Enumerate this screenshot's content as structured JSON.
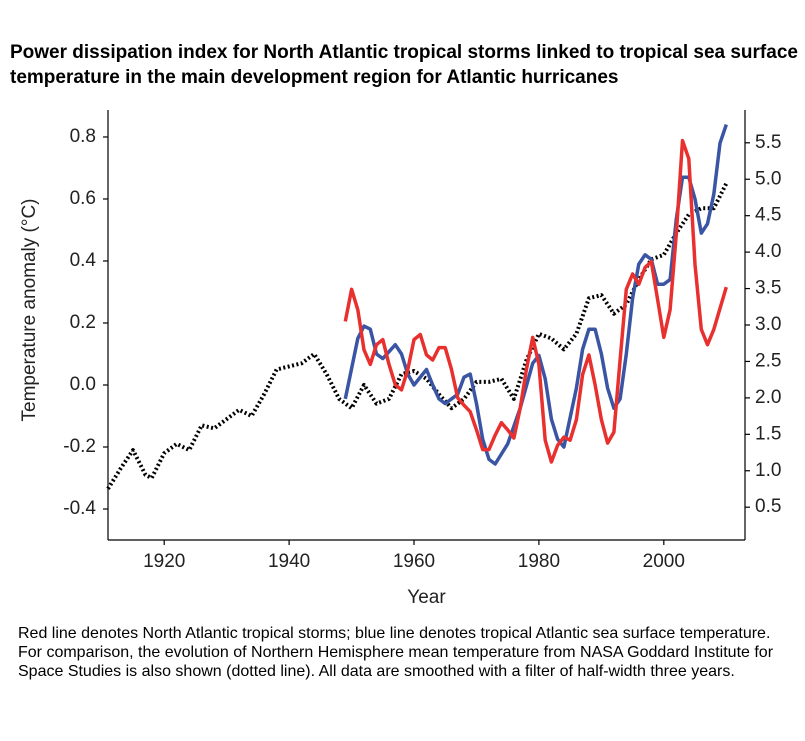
{
  "chart_data": {
    "type": "line",
    "title": "Power dissipation index for North Atlantic tropical storms linked to tropical sea surface temperature in the main development region for Atlantic hurricanes",
    "caption": "Red line denotes North Atlantic tropical storms; blue line denotes tropical Atlantic sea surface temperature. For comparison, the evolution of Northern Hemisphere mean temperature from NASA Goddard Institute for Space Studies is also shown (dotted line). All data are smoothed with a filter of half-width three years.",
    "x_label": "Year",
    "y_label": "Temperature anomaly (°C)",
    "xlim": [
      1911,
      2013
    ],
    "xticks": [
      1920,
      1940,
      1960,
      1980,
      2000
    ],
    "ylim": [
      -0.5,
      0.887
    ],
    "yticks": [
      -0.4,
      -0.2,
      {
        "value": 0,
        "label": "0.0"
      },
      0.2,
      0.4,
      0.6,
      0.8
    ],
    "y2lim": [
      0.05,
      5.95
    ],
    "y2ticks": [
      0.5,
      {
        "value": 1,
        "label": "1.0"
      },
      1.5,
      {
        "value": 2,
        "label": "2.0"
      },
      2.5,
      {
        "value": 3,
        "label": "3.0"
      },
      3.5,
      {
        "value": 4,
        "label": "4.0"
      },
      4.5,
      {
        "value": 5,
        "label": "5.0"
      },
      5.5
    ],
    "series": [
      {
        "color": "#000000",
        "style": "dotted",
        "x": [
          1911,
          1913,
          1915,
          1917,
          1918,
          1920,
          1922,
          1924,
          1926,
          1928,
          1930,
          1932,
          1934,
          1936,
          1938,
          1940,
          1942,
          1944,
          1946,
          1948,
          1950,
          1952,
          1954,
          1956,
          1958,
          1960,
          1962,
          1964,
          1966,
          1968,
          1970,
          1972,
          1974,
          1976,
          1978,
          1980,
          1982,
          1984,
          1986,
          1988,
          1990,
          1992,
          1994,
          1996,
          1998,
          2000,
          2002,
          2004,
          2006,
          2008,
          2010
        ],
        "values": [
          -0.335,
          -0.27,
          -0.21,
          -0.29,
          -0.3,
          -0.22,
          -0.19,
          -0.21,
          -0.13,
          -0.14,
          -0.11,
          -0.08,
          -0.1,
          -0.03,
          0.05,
          0.06,
          0.07,
          0.1,
          0.035,
          -0.045,
          -0.075,
          0.0,
          -0.06,
          -0.045,
          0.035,
          0.045,
          0.02,
          -0.03,
          -0.075,
          -0.045,
          0.01,
          0.01,
          0.02,
          -0.045,
          0.08,
          0.165,
          0.15,
          0.115,
          0.165,
          0.28,
          0.29,
          0.23,
          0.26,
          0.34,
          0.405,
          0.42,
          0.49,
          0.55,
          0.57,
          0.57,
          0.65
        ]
      },
      {
        "color": "#3a55a4",
        "style": "solid",
        "x": [
          1949,
          1951,
          1952,
          1953,
          1954,
          1955,
          1957,
          1958,
          1959,
          1960,
          1962,
          1963,
          1964,
          1965,
          1967,
          1968,
          1969,
          1970,
          1971,
          1972,
          1973,
          1975,
          1977,
          1979,
          1980,
          1981,
          1982,
          1983,
          1984,
          1986,
          1987,
          1988,
          1989,
          1990,
          1991,
          1992,
          1993,
          1994,
          1995,
          1996,
          1997,
          1998,
          1999,
          2000,
          2001,
          2002,
          2003,
          2004,
          2005,
          2006,
          2007,
          2008,
          2009,
          2010
        ],
        "values": [
          -0.045,
          0.15,
          0.19,
          0.18,
          0.1,
          0.085,
          0.13,
          0.1,
          0.035,
          0.0,
          0.05,
          0.0,
          -0.045,
          -0.06,
          -0.03,
          0.025,
          0.035,
          -0.06,
          -0.175,
          -0.24,
          -0.255,
          -0.19,
          -0.075,
          0.07,
          0.095,
          0.02,
          -0.11,
          -0.175,
          -0.2,
          -0.01,
          0.115,
          0.18,
          0.18,
          0.1,
          -0.01,
          -0.075,
          -0.045,
          0.1,
          0.28,
          0.39,
          0.42,
          0.405,
          0.325,
          0.325,
          0.34,
          0.535,
          0.67,
          0.67,
          0.6,
          0.49,
          0.52,
          0.615,
          0.78,
          0.84
        ]
      },
      {
        "color": "#e8312f",
        "style": "solid",
        "axis": "y2",
        "x": [
          1949,
          1950,
          1951,
          1952,
          1953,
          1954,
          1955,
          1956,
          1957,
          1958,
          1959,
          1960,
          1961,
          1962,
          1963,
          1964,
          1965,
          1966,
          1967,
          1968,
          1969,
          1970,
          1971,
          1972,
          1973,
          1974,
          1975,
          1976,
          1977,
          1978,
          1979,
          1980,
          1981,
          1982,
          1983,
          1984,
          1985,
          1986,
          1987,
          1988,
          1989,
          1990,
          1991,
          1992,
          1993,
          1994,
          1995,
          1996,
          1997,
          1998,
          1999,
          2000,
          2001,
          2002,
          2003,
          2004,
          2005,
          2006,
          2007,
          2008,
          2010
        ],
        "values": [
          3.05,
          3.49,
          3.21,
          2.66,
          2.46,
          2.73,
          2.8,
          2.46,
          2.18,
          2.11,
          2.39,
          2.8,
          2.87,
          2.59,
          2.52,
          2.69,
          2.69,
          2.39,
          2.0,
          1.9,
          1.81,
          1.56,
          1.29,
          1.29,
          1.49,
          1.66,
          1.56,
          1.45,
          1.86,
          2.39,
          2.83,
          2.46,
          1.42,
          1.12,
          1.35,
          1.46,
          1.42,
          1.7,
          2.32,
          2.59,
          2.18,
          1.7,
          1.38,
          1.53,
          2.52,
          3.49,
          3.7,
          3.56,
          3.79,
          3.87,
          3.35,
          2.83,
          3.21,
          4.25,
          5.53,
          5.28,
          3.83,
          2.94,
          2.73,
          2.94,
          3.52
        ]
      }
    ]
  }
}
